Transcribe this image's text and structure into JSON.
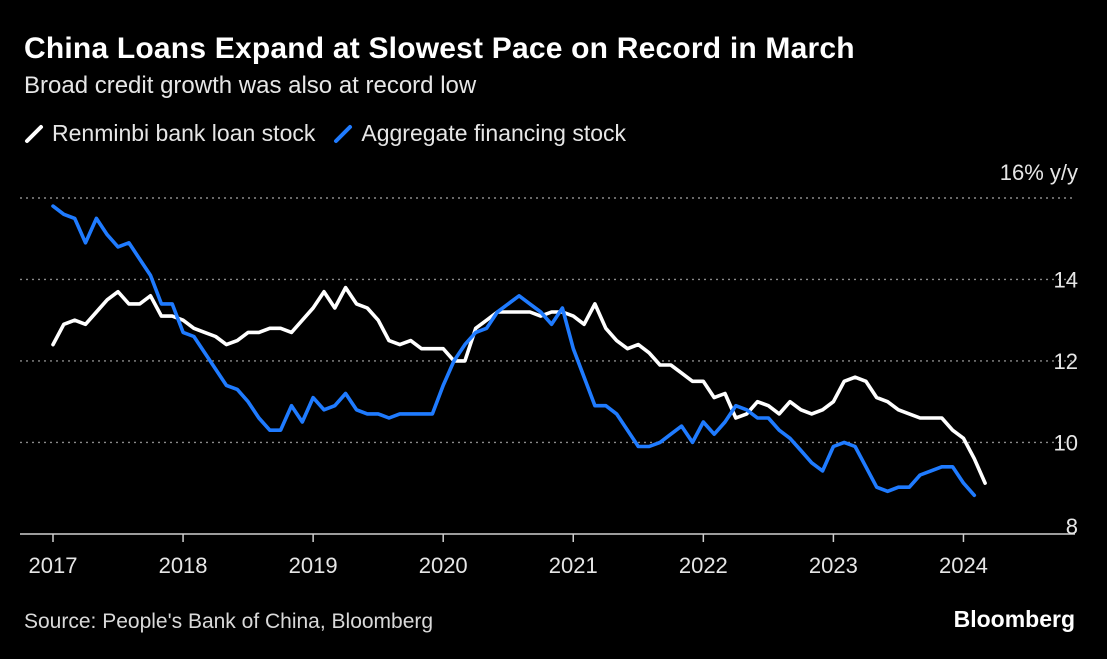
{
  "colors": {
    "background": "#000000",
    "loan": "#ffffff",
    "financing": "#1f7bff",
    "grid": "#8a8a8a",
    "axis": "#cfcfcf",
    "text": "#e6e6e6"
  },
  "legend": [
    {
      "label": "Renminbi bank loan stock",
      "icon": "white-line-swatch-icon"
    },
    {
      "label": "Aggregate financing stock",
      "icon": "blue-line-swatch-icon"
    }
  ],
  "source": "Source: People's Bank of China, Bloomberg",
  "brand": "Bloomberg",
  "chart_data": {
    "type": "line",
    "title": "China Loans Expand at Slowest Pace on Record in March",
    "subtitle": "Broad credit growth was also at record low",
    "ylabel": "% y/y",
    "ylim": [
      7.8,
      16
    ],
    "yticks": [
      8,
      10,
      12,
      14,
      16
    ],
    "ytick_labels": [
      "8",
      "10",
      "12",
      "14",
      "16% y/y"
    ],
    "xlim": [
      2017.0,
      2024.65
    ],
    "xticks": [
      2017,
      2018,
      2019,
      2020,
      2021,
      2022,
      2023,
      2024
    ],
    "xtick_labels": [
      "2017",
      "2018",
      "2019",
      "2020",
      "2021",
      "2022",
      "2023",
      "2024"
    ],
    "grid": true,
    "series": [
      {
        "name": "Renminbi bank loan stock",
        "start": 2017.0,
        "step_months": 1,
        "values": [
          12.4,
          12.9,
          13.0,
          12.9,
          13.2,
          13.5,
          13.7,
          13.4,
          13.4,
          13.6,
          13.1,
          13.1,
          13.0,
          12.8,
          12.7,
          12.6,
          12.4,
          12.5,
          12.7,
          12.7,
          12.8,
          12.8,
          12.7,
          13.0,
          13.3,
          13.7,
          13.3,
          13.8,
          13.4,
          13.3,
          13.0,
          12.5,
          12.4,
          12.5,
          12.3,
          12.3,
          12.3,
          12.0,
          12.0,
          12.8,
          13.0,
          13.2,
          13.2,
          13.2,
          13.2,
          13.1,
          13.2,
          13.2,
          13.1,
          12.9,
          13.4,
          12.8,
          12.5,
          12.3,
          12.4,
          12.2,
          11.9,
          11.9,
          11.7,
          11.5,
          11.5,
          11.1,
          11.2,
          10.6,
          10.7,
          11.0,
          10.9,
          10.7,
          11.0,
          10.8,
          10.7,
          10.8,
          11.0,
          11.5,
          11.6,
          11.5,
          11.1,
          11.0,
          10.8,
          10.7,
          10.6,
          10.6,
          10.6,
          10.3,
          10.1,
          9.6,
          9.0
        ]
      },
      {
        "name": "Aggregate financing stock",
        "start": 2017.0,
        "step_months": 1,
        "values": [
          15.8,
          15.6,
          15.5,
          14.9,
          15.5,
          15.1,
          14.8,
          14.9,
          14.5,
          14.1,
          13.4,
          13.4,
          12.7,
          12.6,
          12.2,
          11.8,
          11.4,
          11.3,
          11.0,
          10.6,
          10.3,
          10.3,
          10.9,
          10.5,
          11.1,
          10.8,
          10.9,
          11.2,
          10.8,
          10.7,
          10.7,
          10.6,
          10.7,
          10.7,
          10.7,
          10.7,
          11.4,
          12.0,
          12.4,
          12.7,
          12.8,
          13.2,
          13.4,
          13.6,
          13.4,
          13.2,
          12.9,
          13.3,
          12.3,
          11.6,
          10.9,
          10.9,
          10.7,
          10.3,
          9.9,
          9.9,
          10.0,
          10.2,
          10.4,
          10.0,
          10.5,
          10.2,
          10.5,
          10.9,
          10.8,
          10.6,
          10.6,
          10.3,
          10.1,
          9.8,
          9.5,
          9.3,
          9.9,
          10.0,
          9.9,
          9.4,
          8.9,
          8.8,
          8.9,
          8.9,
          9.2,
          9.3,
          9.4,
          9.4,
          9.0,
          8.7
        ]
      }
    ]
  }
}
